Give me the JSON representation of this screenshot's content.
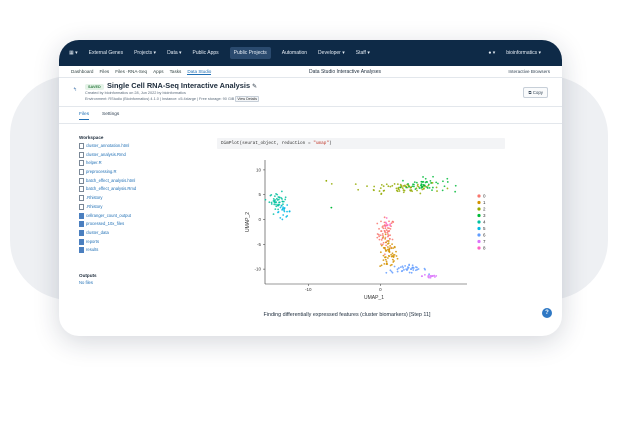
{
  "topnav": {
    "grid_icon": "grid-icon",
    "items": [
      {
        "label": "External Genes",
        "active": false
      },
      {
        "label": "Projects ▾",
        "active": false
      },
      {
        "label": "Data ▾",
        "active": false
      },
      {
        "label": "Public Apps",
        "active": false
      },
      {
        "label": "Public Projects",
        "active": true
      },
      {
        "label": "Automation",
        "active": false
      },
      {
        "label": "Developer ▾",
        "active": false
      },
      {
        "label": "Staff ▾",
        "active": false
      }
    ],
    "user_label": "bioinformatics ▾",
    "user_icon": "person-icon"
  },
  "subnav": {
    "items": [
      {
        "label": "Dashboard",
        "active": false
      },
      {
        "label": "Files",
        "active": false
      },
      {
        "label": "Files ·RNA-Seq",
        "active": false
      },
      {
        "label": "Apps",
        "active": false
      },
      {
        "label": "Tasks",
        "active": false
      },
      {
        "label": "Data Studio",
        "active": true
      }
    ],
    "center_label": "Data Studio Interactive Analyses",
    "right_label": "Interactive Browsers"
  },
  "header": {
    "status_badge": "SAVED",
    "title": "Single Cell RNA-Seq Interactive Analysis",
    "meta_line1": "Created by bioinformatics on 28, Jun 2022 by bioinformatics",
    "meta_line2": "Environment: RStudio (Bioinformatics) 4.1.0 | Instance: c5.4xlarge | Free storage: 90 GiB",
    "meta_button": "View Details",
    "copy_button": "Copy"
  },
  "tabs": [
    "Files",
    "Settings"
  ],
  "workspace": {
    "heading": "Workspace",
    "entries": [
      {
        "name": "cluster_annotation.html",
        "type": "file"
      },
      {
        "name": "cluster_analysis.Rmd",
        "type": "file"
      },
      {
        "name": "helper.R",
        "type": "file"
      },
      {
        "name": "preprocessing.R",
        "type": "file"
      },
      {
        "name": "batch_effect_analysis.html",
        "type": "file"
      },
      {
        "name": "batch_effect_analysis.Rmd",
        "type": "file"
      },
      {
        "name": ".Rhistory",
        "type": "file"
      },
      {
        "name": ".Rhistory",
        "type": "file"
      },
      {
        "name": "cellranger_count_output",
        "type": "folder"
      },
      {
        "name": "processed_10x_files",
        "type": "folder"
      },
      {
        "name": "cluster_data",
        "type": "folder"
      },
      {
        "name": "reports",
        "type": "folder"
      },
      {
        "name": "results",
        "type": "folder"
      }
    ]
  },
  "outputs": {
    "heading": "Outputs",
    "value": "No files"
  },
  "code": {
    "prefix": "DimPlot(seurat_object, reduction = ",
    "arg": "\"umap\"",
    "suffix": ")"
  },
  "caption": "Finding differentially expressed features (cluster biomarkers) [Step 11]",
  "help_label": "?",
  "chart_data": {
    "type": "scatter",
    "xlabel": "UMAP_1",
    "ylabel": "UMAP_2",
    "x_ticks": [
      "-10",
      "0"
    ],
    "y_ticks": [
      "10",
      "5",
      "0",
      "-5",
      "-10"
    ],
    "xlim": [
      -16,
      12
    ],
    "ylim": [
      -13,
      12
    ],
    "legend_position": "right",
    "legend": [
      {
        "label": "0",
        "color": "#f8766d"
      },
      {
        "label": "1",
        "color": "#d39200"
      },
      {
        "label": "2",
        "color": "#93aa00"
      },
      {
        "label": "3",
        "color": "#00ba38"
      },
      {
        "label": "4",
        "color": "#00c19f"
      },
      {
        "label": "5",
        "color": "#00b9e3"
      },
      {
        "label": "6",
        "color": "#619cff"
      },
      {
        "label": "7",
        "color": "#db72fb"
      },
      {
        "label": "8",
        "color": "#ff61c3"
      }
    ],
    "clusters": [
      {
        "label": "0",
        "cx": 0.8,
        "cy": -2.8,
        "sx": 0.6,
        "sy": 1.6,
        "n": 60
      },
      {
        "label": "1",
        "cx": 1.1,
        "cy": -7.0,
        "sx": 0.6,
        "sy": 1.6,
        "n": 60
      },
      {
        "label": "2",
        "cx": 3.0,
        "cy": 6.5,
        "sx": 2.8,
        "sy": 0.6,
        "n": 70
      },
      {
        "label": "3",
        "cx": 6.0,
        "cy": 7.0,
        "sx": 1.6,
        "sy": 0.7,
        "n": 50
      },
      {
        "label": "4",
        "cx": -14.2,
        "cy": 3.8,
        "sx": 0.6,
        "sy": 0.8,
        "n": 45
      },
      {
        "label": "5",
        "cx": -13.4,
        "cy": 1.6,
        "sx": 0.5,
        "sy": 0.6,
        "n": 20
      },
      {
        "label": "6",
        "cx": 3.6,
        "cy": -10.0,
        "sx": 1.4,
        "sy": 0.4,
        "n": 40
      },
      {
        "label": "7",
        "cx": 7.0,
        "cy": -11.4,
        "sx": 0.6,
        "sy": 0.3,
        "n": 15
      },
      {
        "label": "8",
        "cx": 1.0,
        "cy": -1.0,
        "sx": 0.3,
        "sy": 0.4,
        "n": 8
      }
    ],
    "outliers": [
      {
        "x": -7.5,
        "y": 7.8,
        "cluster": "2"
      },
      {
        "x": -6.8,
        "y": 2.4,
        "cluster": "3"
      }
    ]
  }
}
